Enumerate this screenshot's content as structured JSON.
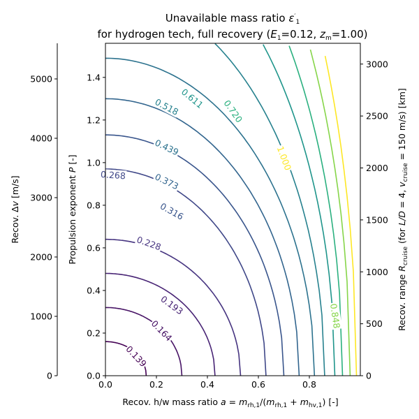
{
  "chart_data": {
    "type": "line",
    "title_line1": "Unavailable mass ratio ε′₁",
    "title_line2": "for hydrogen tech, full recovery (E₁=0.12, zₘ=1.00)",
    "xlabel": "Recov. h/w mass ratio a = m_rh,1/(m_rh,1 + m_hv,1) [-]",
    "ylabel": "Propulsion exponent P [-]",
    "xlim": [
      0,
      1
    ],
    "ylim": [
      0,
      1.56
    ],
    "x_ticks": [
      "0.0",
      "0.2",
      "0.4",
      "0.6",
      "0.8"
    ],
    "x_tick_values": [
      0,
      0.2,
      0.4,
      0.6,
      0.8
    ],
    "y_ticks": [
      "0.0",
      "0.2",
      "0.4",
      "0.6",
      "0.8",
      "1.0",
      "1.2",
      "1.4"
    ],
    "y_tick_values": [
      0,
      0.2,
      0.4,
      0.6,
      0.8,
      1.0,
      1.2,
      1.4
    ],
    "left_axis": {
      "label": "Recov. Δv [m/s]",
      "ticks": [
        "0",
        "1000",
        "2000",
        "3000",
        "4000",
        "5000"
      ],
      "tick_values": [
        0,
        1000,
        2000,
        3000,
        4000,
        5000
      ],
      "lim": [
        0,
        5600
      ]
    },
    "right_axis": {
      "label": "Recov. range R_cruise (for L/D = 4, v_cruise = 150 m/s) [km]",
      "ticks": [
        "0",
        "500",
        "1000",
        "1500",
        "2000",
        "2500",
        "3000"
      ],
      "tick_values": [
        0,
        500,
        1000,
        1500,
        2000,
        2500,
        3000
      ],
      "lim": [
        0,
        3200
      ]
    },
    "colormap": "viridis",
    "contours": [
      {
        "level": 0.139,
        "label": "0.139",
        "a0": 0.16,
        "P0": 0.16,
        "color": "#440154",
        "label_pos": [
          0.12,
          0.09
        ]
      },
      {
        "level": 0.164,
        "label": "0.164",
        "a0": 0.3,
        "P0": 0.32,
        "color": "#471365",
        "label_pos": [
          0.22,
          0.21
        ]
      },
      {
        "level": 0.193,
        "label": "0.193",
        "a0": 0.43,
        "P0": 0.48,
        "color": "#482475",
        "label_pos": [
          0.26,
          0.33
        ]
      },
      {
        "level": 0.228,
        "label": "0.228",
        "a0": 0.53,
        "P0": 0.64,
        "color": "#463480",
        "label_pos": [
          0.17,
          0.62
        ]
      },
      {
        "level": 0.268,
        "label": "0.268",
        "a0": 0.63,
        "P0": 0.97,
        "color": "#3f4788",
        "label_pos": [
          0.03,
          0.94
        ]
      },
      {
        "level": 0.316,
        "label": "0.316",
        "a0": 0.7,
        "P0": 1.13,
        "color": "#39558c",
        "label_pos": [
          0.26,
          0.77
        ]
      },
      {
        "level": 0.373,
        "label": "0.373",
        "a0": 0.76,
        "P0": 1.3,
        "color": "#32658e",
        "label_pos": [
          0.24,
          0.91
        ]
      },
      {
        "level": 0.439,
        "label": "0.439",
        "a0": 0.82,
        "P0": 1.49,
        "color": "#2c728e",
        "label_pos": [
          0.24,
          1.07
        ]
      },
      {
        "level": 0.518,
        "label": "0.518",
        "a0": 0.86,
        "P0": 1.8,
        "color": "#26818e",
        "label_pos": [
          0.24,
          1.26
        ]
      },
      {
        "level": 0.611,
        "label": "0.611",
        "a0": 0.9,
        "P0": 2.14,
        "color": "#1f958b",
        "label_pos": [
          0.34,
          1.3
        ]
      },
      {
        "level": 0.72,
        "label": "0.720",
        "a0": 0.93,
        "P0": 2.45,
        "color": "#2ab07f",
        "label_pos": [
          0.5,
          1.24
        ]
      },
      {
        "level": 0.848,
        "label": "0.848",
        "a0": 0.96,
        "P0": 2.8,
        "color": "#86d549",
        "label_pos": [
          0.9,
          0.28
        ]
      },
      {
        "level": 1.0,
        "label": "1.000",
        "a0": 0.985,
        "P0": 3.1,
        "color": "#fde725",
        "label_pos": [
          0.7,
          1.02
        ]
      }
    ]
  }
}
